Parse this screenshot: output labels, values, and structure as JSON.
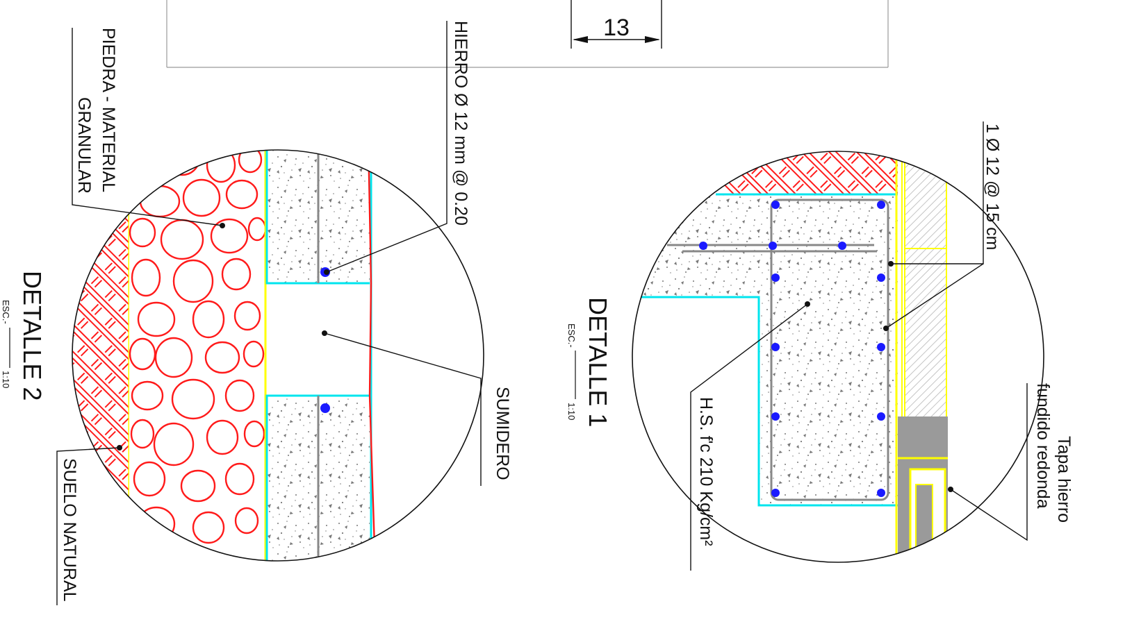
{
  "dimension": {
    "value": "13"
  },
  "detalle_1": {
    "title": "DETALLE 1",
    "scale_prefix": "ESC.-",
    "scale": "1:10",
    "labels": {
      "rebar": "1 Ø 12 @ 15 cm",
      "concrete": "H.S. f'c 210 Kg/cm²",
      "cover_line1": "Tapa hierro",
      "cover_line2": "fundido redonda"
    }
  },
  "detalle_2": {
    "title": "DETALLE 2",
    "scale_prefix": "ESC.-",
    "scale": "1:10",
    "labels": {
      "stone_line1": "PIEDRA - MATERIAL",
      "stone_line2": "GRANULAR",
      "rebar": "HIERRO Ø 12 mm @ 0.20",
      "drain": "SUMIDERO",
      "soil": "SUELO NATURAL"
    }
  },
  "colors": {
    "line": "#111111",
    "hatch_red": "#ff1a1a",
    "cyan": "#00e5ee",
    "yellow": "#ffff00",
    "rebar_blue": "#1a1aff",
    "concrete_dots": "#777777",
    "grey_fill": "#9a9a9a"
  }
}
